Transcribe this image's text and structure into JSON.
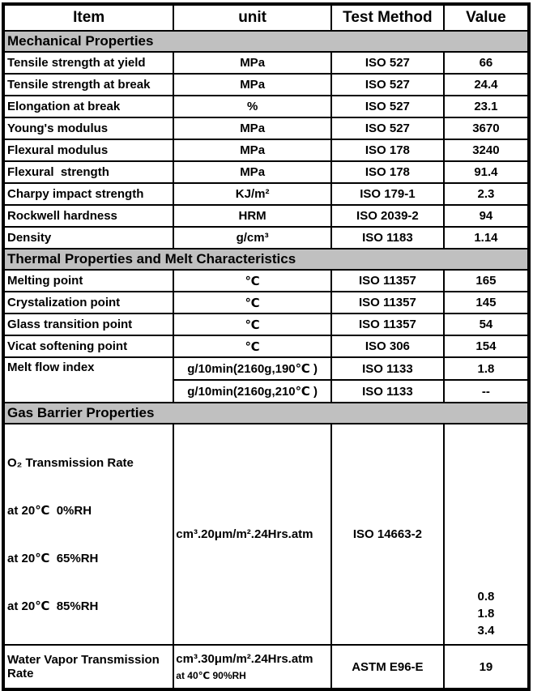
{
  "header": {
    "columns": [
      "Item",
      "unit",
      "Test Method",
      "Value"
    ]
  },
  "sections": [
    {
      "title": "Mechanical Properties",
      "rows": [
        {
          "item": "Tensile strength at yield",
          "unit": "MPa",
          "method": "ISO 527",
          "value": "66"
        },
        {
          "item": "Tensile strength at break",
          "unit": "MPa",
          "method": "ISO 527",
          "value": "24.4"
        },
        {
          "item": "Elongation at break",
          "unit": "%",
          "method": "ISO 527",
          "value": "23.1"
        },
        {
          "item": "Young's modulus",
          "unit": "MPa",
          "method": "ISO 527",
          "value": "3670"
        },
        {
          "item": "Flexural modulus",
          "unit": "MPa",
          "method": "ISO 178",
          "value": "3240"
        },
        {
          "item": "Flexural  strength",
          "unit": "MPa",
          "method": "ISO 178",
          "value": "91.4"
        },
        {
          "item": "Charpy impact strength",
          "unit": "KJ/m²",
          "method": "ISO 179-1",
          "value": "2.3"
        },
        {
          "item": "Rockwell hardness",
          "unit": "HRM",
          "method": "ISO 2039-2",
          "value": "94"
        },
        {
          "item": "Density",
          "unit": "g/cm³",
          "method": "ISO 1183",
          "value": "1.14"
        }
      ]
    },
    {
      "title": "Thermal Properties and Melt Characteristics",
      "rows": [
        {
          "item": "Melting point",
          "unit": "℃",
          "method": "ISO 11357",
          "value": "165"
        },
        {
          "item": "Crystalization point",
          "unit": "℃",
          "method": "ISO 11357",
          "value": "145"
        },
        {
          "item": "Glass transition point",
          "unit": "℃",
          "method": "ISO 11357",
          "value": "54"
        },
        {
          "item": "Vicat softening point",
          "unit": "℃",
          "method": "ISO 306",
          "value": "154"
        },
        {
          "item": "Melt flow index",
          "unit": "g/10min(2160g,190℃ )",
          "method": "ISO 1133",
          "value": "1.8"
        },
        {
          "unit": "g/10min(2160g,210℃ )",
          "method": "ISO 1133",
          "value": "--"
        }
      ]
    },
    {
      "title": "Gas Barrier Properties",
      "o2_row": {
        "item_title": "O₂ Transmission Rate",
        "item_lines": [
          "at 20℃  0%RH",
          "at 20℃  65%RH",
          "at 20℃  85%RH"
        ],
        "unit": "cm³.20μm/m².24Hrs.atm",
        "method": "ISO 14663-2",
        "values": [
          "0.8",
          "1.8",
          "3.4"
        ]
      },
      "wvtr_row": {
        "item": "Water Vapor Transmission Rate",
        "unit_line1": "cm³.30μm/m².24Hrs.atm",
        "unit_line2": "at 40℃ 90%RH",
        "method": "ASTM E96-E",
        "value": "19"
      }
    }
  ],
  "colors": {
    "section_bg": "#c0c0c0",
    "border": "#000000",
    "text": "#000000",
    "background": "#ffffff"
  }
}
